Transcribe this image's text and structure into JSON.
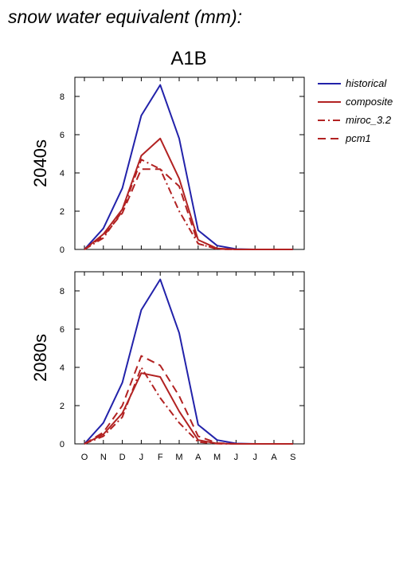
{
  "figure": {
    "title": "snow water equivalent (mm):",
    "scenario": "A1B"
  },
  "legend": {
    "placement": "right",
    "items": [
      {
        "label": "historical",
        "color": "#2222aa",
        "dash": "solid"
      },
      {
        "label": "composite",
        "color": "#b22222",
        "dash": "solid"
      },
      {
        "label": "miroc_3.2",
        "color": "#b22222",
        "dash": "dashdot"
      },
      {
        "label": "pcm1",
        "color": "#b22222",
        "dash": "dashed"
      }
    ]
  },
  "chart_data": [
    {
      "type": "line",
      "panel_label": "2040s",
      "categories": [
        "O",
        "N",
        "D",
        "J",
        "F",
        "M",
        "A",
        "M",
        "J",
        "J",
        "A",
        "S"
      ],
      "ylim": [
        0,
        9
      ],
      "yticks": [
        0,
        2,
        4,
        6,
        8
      ],
      "grid": false,
      "show_xtick_labels": false,
      "series": [
        {
          "name": "historical",
          "values": [
            0,
            1.1,
            3.2,
            7.0,
            8.6,
            5.8,
            1.0,
            0.2,
            0.02,
            0,
            0,
            0
          ]
        },
        {
          "name": "composite",
          "values": [
            0,
            0.8,
            2.1,
            4.9,
            5.8,
            3.7,
            0.5,
            0.05,
            0,
            0,
            0,
            0
          ]
        },
        {
          "name": "miroc_3.2",
          "values": [
            0,
            0.6,
            2.0,
            4.7,
            4.2,
            2.0,
            0.3,
            0.02,
            0,
            0,
            0,
            0
          ]
        },
        {
          "name": "pcm1",
          "values": [
            0,
            0.7,
            1.9,
            4.2,
            4.2,
            3.3,
            0.3,
            0.03,
            0,
            0,
            0,
            0
          ]
        }
      ]
    },
    {
      "type": "line",
      "panel_label": "2080s",
      "categories": [
        "O",
        "N",
        "D",
        "J",
        "F",
        "M",
        "A",
        "M",
        "J",
        "J",
        "A",
        "S"
      ],
      "ylim": [
        0,
        9
      ],
      "yticks": [
        0,
        2,
        4,
        6,
        8
      ],
      "grid": false,
      "show_xtick_labels": true,
      "series": [
        {
          "name": "historical",
          "values": [
            0,
            1.1,
            3.2,
            7.0,
            8.6,
            5.8,
            1.0,
            0.2,
            0.02,
            0,
            0,
            0
          ]
        },
        {
          "name": "composite",
          "values": [
            0,
            0.5,
            1.6,
            3.7,
            3.5,
            1.7,
            0.2,
            0.02,
            0,
            0,
            0,
            0
          ]
        },
        {
          "name": "miroc_3.2",
          "values": [
            0,
            0.4,
            1.4,
            4.0,
            2.4,
            1.1,
            0.1,
            0.01,
            0,
            0,
            0,
            0
          ]
        },
        {
          "name": "pcm1",
          "values": [
            0,
            0.6,
            2.0,
            4.6,
            4.1,
            2.5,
            0.4,
            0.04,
            0,
            0,
            0,
            0
          ]
        }
      ]
    }
  ]
}
